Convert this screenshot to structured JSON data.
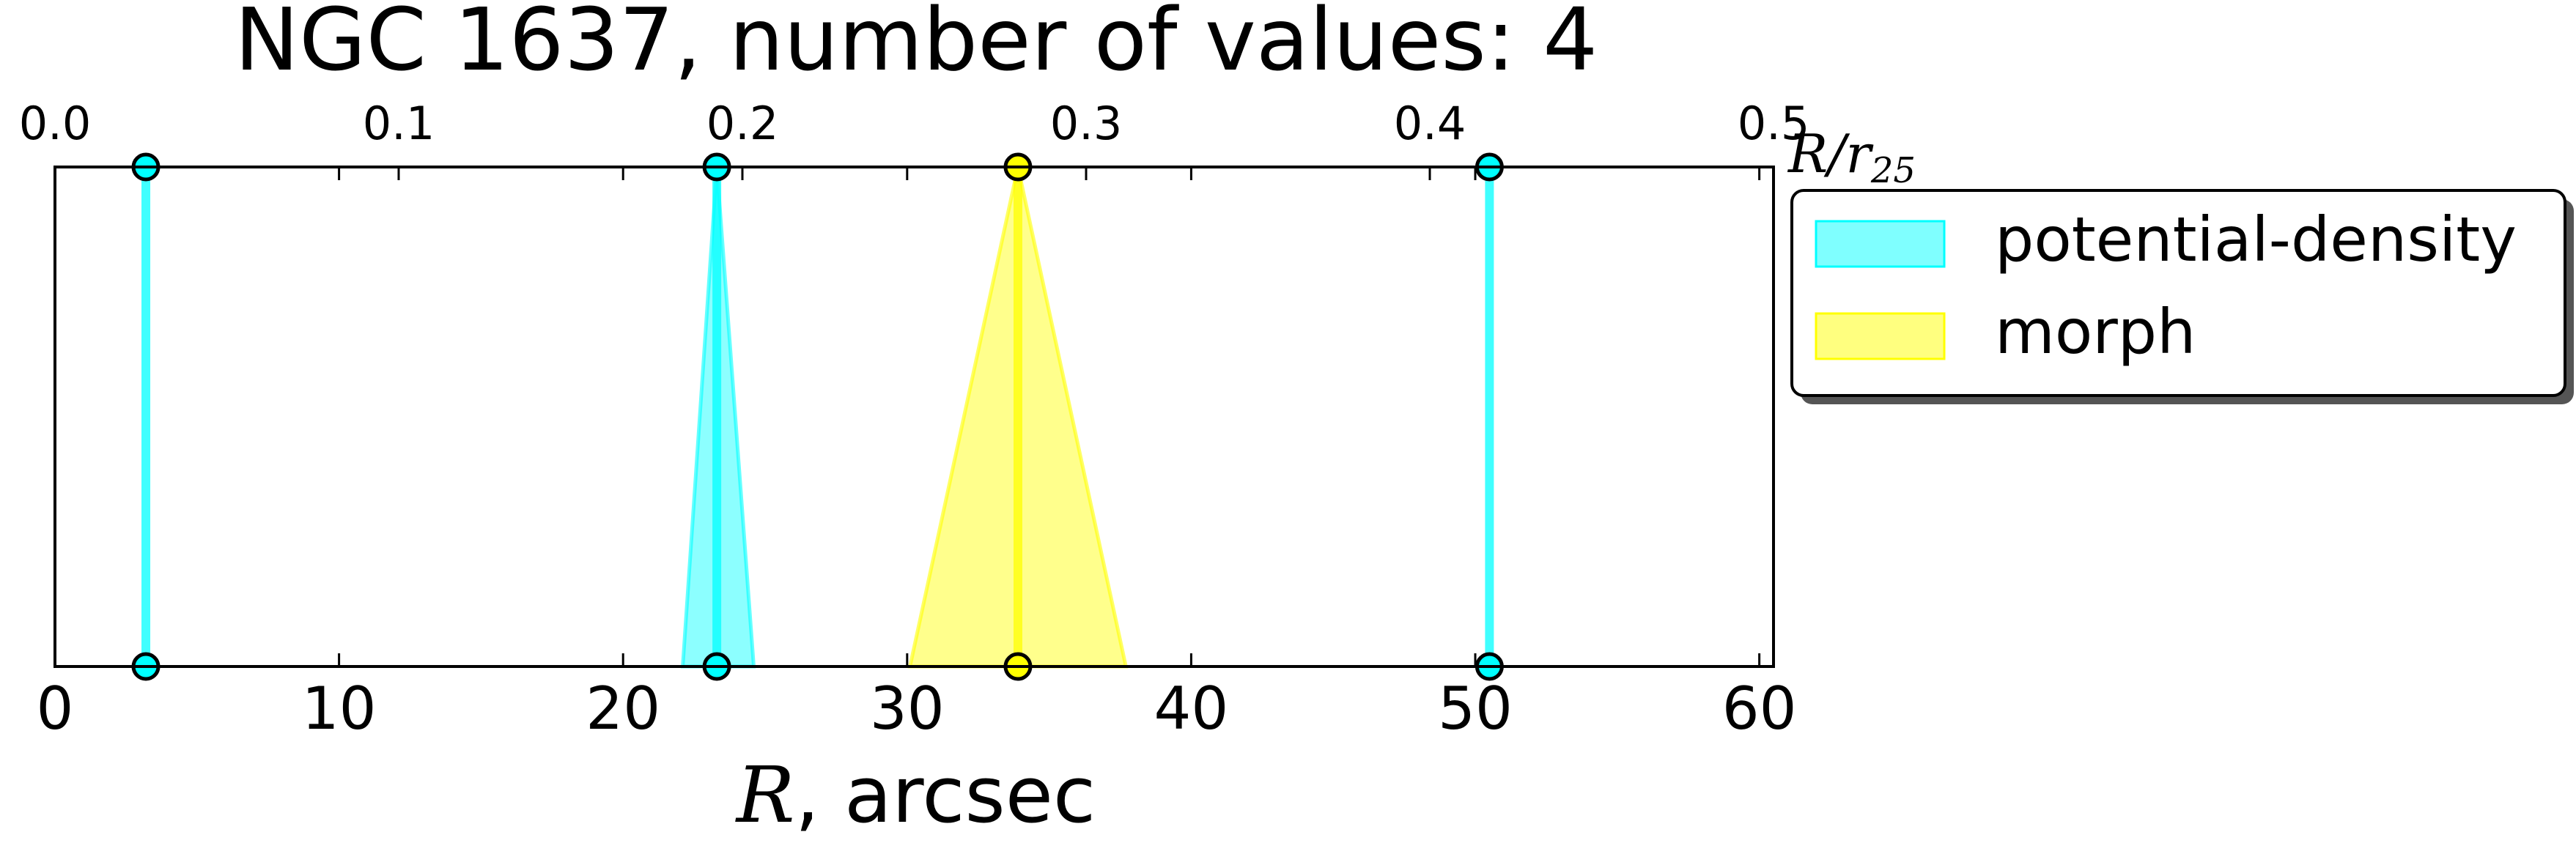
{
  "chart_data": {
    "type": "scatter",
    "title": "NGC 1637, number of values: 4",
    "xlabel_var": "R",
    "xlabel_unit": ", arcsec",
    "top_xlabel_var": "R/r",
    "top_xlabel_sub": "25",
    "xlim": [
      0,
      60.5
    ],
    "top_xlim": [
      0.0,
      0.5
    ],
    "bottom_ticks": [
      0,
      10,
      20,
      30,
      40,
      50,
      60
    ],
    "top_ticks": [
      "0.0",
      "0.1",
      "0.2",
      "0.3",
      "0.4",
      "0.5"
    ],
    "top_tick_values": [
      0.0,
      0.1,
      0.2,
      0.3,
      0.4,
      0.5
    ],
    "legend_position": "outside upper right",
    "series": [
      {
        "name": "potential-density",
        "color": "#00ffff",
        "points": [
          {
            "r": 3.2,
            "r_low": 3.2,
            "r_high": 3.2
          },
          {
            "r": 23.3,
            "r_low": 22.1,
            "r_high": 24.6
          },
          {
            "r": 50.5,
            "r_low": 50.5,
            "r_high": 50.5
          }
        ]
      },
      {
        "name": "morph",
        "color": "#ffff00",
        "points": [
          {
            "r": 33.9,
            "r_low": 30.1,
            "r_high": 37.7
          }
        ]
      }
    ]
  }
}
